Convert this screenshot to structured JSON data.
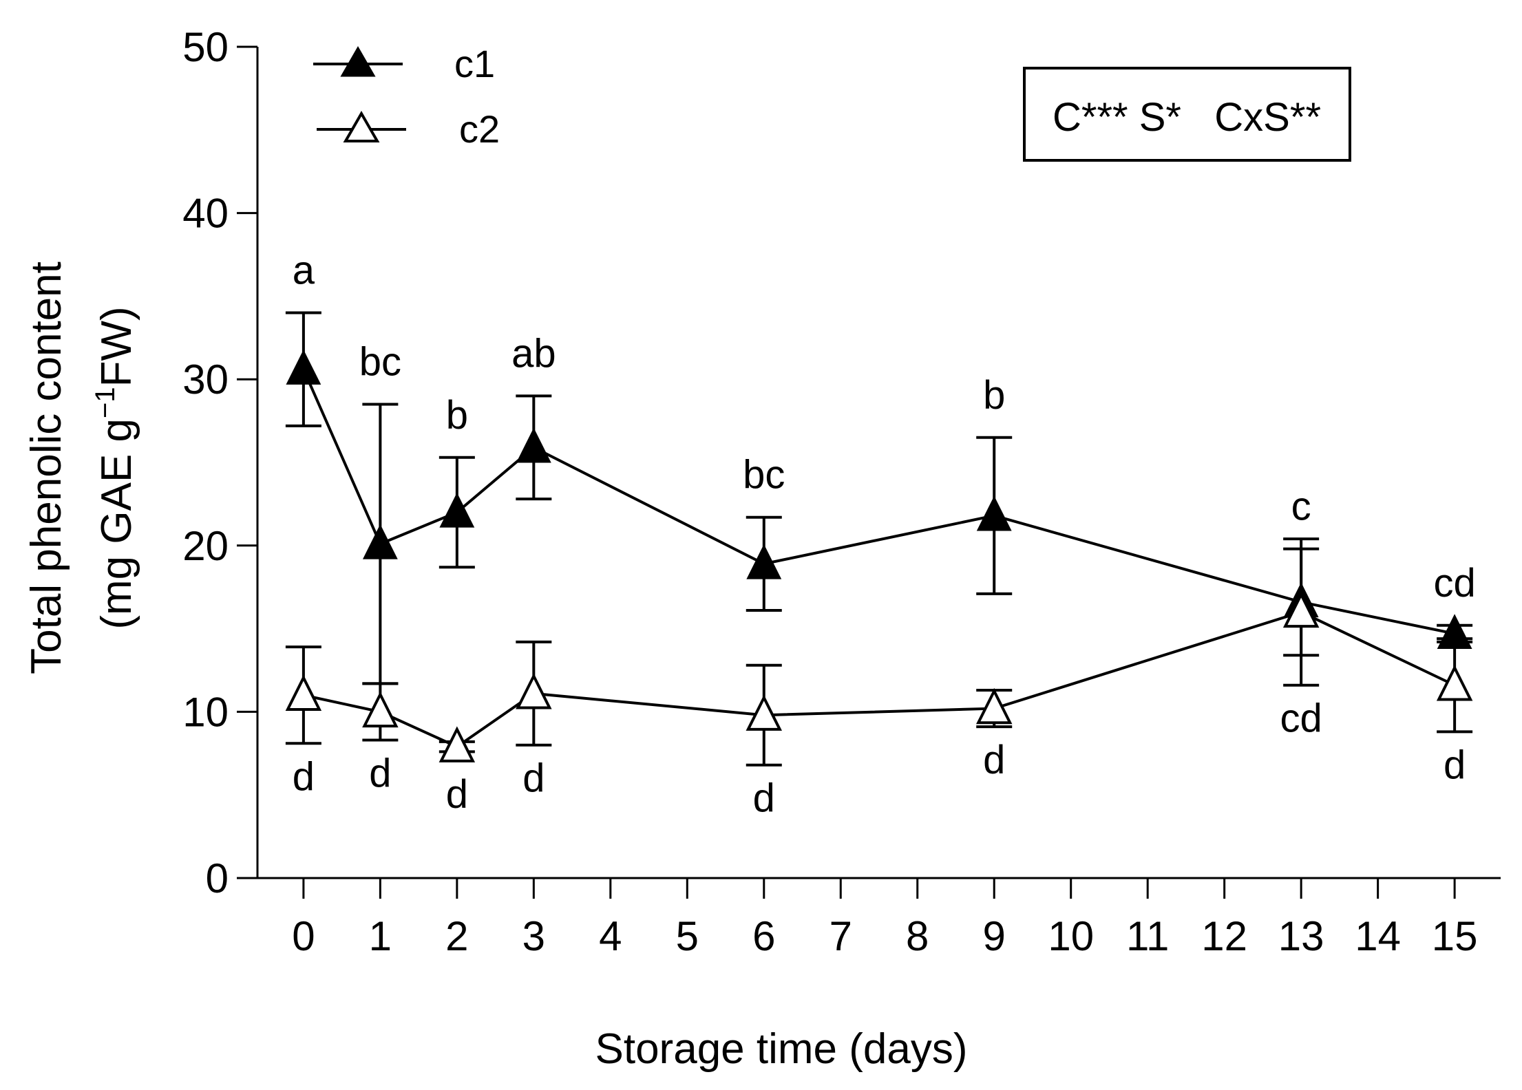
{
  "chart_data": {
    "type": "line",
    "xlabel": "Storage time (days)",
    "ylabel_line1": "Total phenolic content",
    "ylabel_line2_prefix": "(mg GAE g",
    "ylabel_line2_sup": "−1",
    "ylabel_line2_suffix": "FW)",
    "ylim": [
      0,
      50
    ],
    "yticks": [
      0,
      10,
      20,
      30,
      40,
      50
    ],
    "xlim": [
      -0.6,
      15.6
    ],
    "xticks": [
      0,
      1,
      2,
      3,
      4,
      5,
      6,
      7,
      8,
      9,
      10,
      11,
      12,
      13,
      14,
      15
    ],
    "x": [
      0,
      1,
      2,
      3,
      6,
      9,
      13,
      15
    ],
    "series": [
      {
        "name": "c1",
        "marker": "filled-triangle",
        "values": [
          30.6,
          20.1,
          22.0,
          25.9,
          18.9,
          21.8,
          16.6,
          14.7
        ],
        "err": [
          3.4,
          8.4,
          3.3,
          3.1,
          2.8,
          4.7,
          3.2,
          0.5
        ],
        "letters": [
          "a",
          "bc",
          "b",
          "ab",
          "bc",
          "b",
          "c",
          "cd"
        ]
      },
      {
        "name": "c2",
        "marker": "open-triangle",
        "values": [
          11.0,
          10.0,
          7.9,
          11.1,
          9.8,
          10.2,
          16.0,
          11.6
        ],
        "err": [
          2.9,
          1.7,
          0.3,
          3.1,
          3.0,
          1.1,
          4.4,
          2.8
        ],
        "letters": [
          "d",
          "d",
          "d",
          "d",
          "d",
          "d",
          "cd",
          "d"
        ]
      }
    ],
    "legend": {
      "position": "top-left",
      "entries": [
        "c1",
        "c2"
      ]
    },
    "annotation": {
      "position": "top-right",
      "text": "C*** S*   CxS**"
    }
  }
}
